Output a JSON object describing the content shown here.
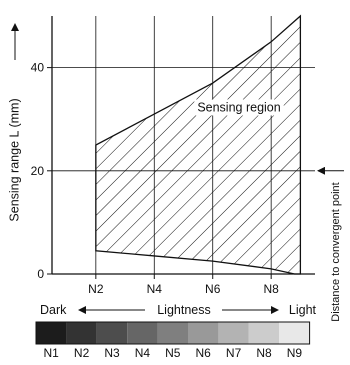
{
  "chart_data": {
    "type": "area",
    "title": "",
    "xlabel": "Lightness",
    "ylabel": "Sensing range L (mm)",
    "right_label": "Distance to convergent point",
    "x_categories": [
      "N1",
      "N2",
      "N3",
      "N4",
      "N5",
      "N6",
      "N7",
      "N8",
      "N9"
    ],
    "x_tick_labels": [
      "N2",
      "N4",
      "N6",
      "N8"
    ],
    "ylim": [
      0,
      50
    ],
    "y_ticks": [
      0,
      20,
      40
    ],
    "grid": true,
    "region": {
      "label": "Sensing region",
      "upper": [
        [
          2,
          25
        ],
        [
          4,
          31
        ],
        [
          6,
          37
        ],
        [
          8,
          45
        ],
        [
          9,
          50
        ]
      ],
      "lower": [
        [
          2,
          4.5
        ],
        [
          4,
          3.5
        ],
        [
          6,
          2.5
        ],
        [
          8,
          1
        ],
        [
          8.8,
          0
        ]
      ],
      "left_edge_top": 24
    },
    "convergent_point_value": 20,
    "lightness_scale": {
      "dark_label": "Dark",
      "light_label": "Light",
      "swatches": [
        {
          "name": "N1",
          "color": "#1c1c1c"
        },
        {
          "name": "N2",
          "color": "#333333"
        },
        {
          "name": "N3",
          "color": "#4d4d4d"
        },
        {
          "name": "N4",
          "color": "#666666"
        },
        {
          "name": "N5",
          "color": "#7f7f7f"
        },
        {
          "name": "N6",
          "color": "#999999"
        },
        {
          "name": "N7",
          "color": "#b3b3b3"
        },
        {
          "name": "N8",
          "color": "#cccccc"
        },
        {
          "name": "N9",
          "color": "#e8e8e8"
        }
      ]
    }
  }
}
